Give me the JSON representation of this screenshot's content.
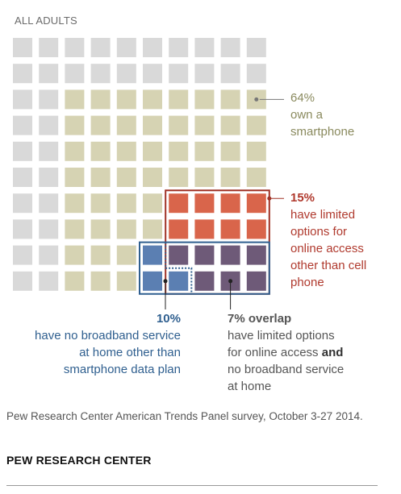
{
  "header": "ALL ADULTS",
  "chart_data": {
    "type": "waffle",
    "grid": {
      "rows": 10,
      "cols": 10,
      "total": 100
    },
    "categories": [
      {
        "name": "all adults",
        "count": 100,
        "color": "#d9d9d9"
      },
      {
        "name": "own a smartphone",
        "count": 64,
        "color": "#d6d3b3"
      },
      {
        "name": "limited options for online access other than cell phone",
        "count": 15,
        "color": "#d9654b"
      },
      {
        "name": "no broadband service at home other than smartphone data plan",
        "count": 10,
        "color": "#5b7fb2"
      },
      {
        "name": "overlap",
        "count": 7,
        "color": "#6e5a78"
      }
    ]
  },
  "annotations": {
    "smartphone": {
      "pct": "64%",
      "line1": "own a",
      "line2": "smartphone"
    },
    "limited": {
      "pct": "15%",
      "lines": [
        "have limited",
        "options for",
        "online access",
        "other than cell",
        "phone"
      ]
    },
    "broadband": {
      "pct": "10%",
      "lines": [
        "have no broadband service",
        "at home other than",
        "smartphone data plan"
      ]
    },
    "overlap": {
      "pct": "7% overlap",
      "line1": "have limited options",
      "line2a": "for online access ",
      "line2b": "and",
      "line3": "no broadband service",
      "line4": "at home"
    }
  },
  "source": "Pew Research Center American Trends Panel survey, October 3-27 2014.",
  "brand": "PEW RESEARCH CENTER"
}
